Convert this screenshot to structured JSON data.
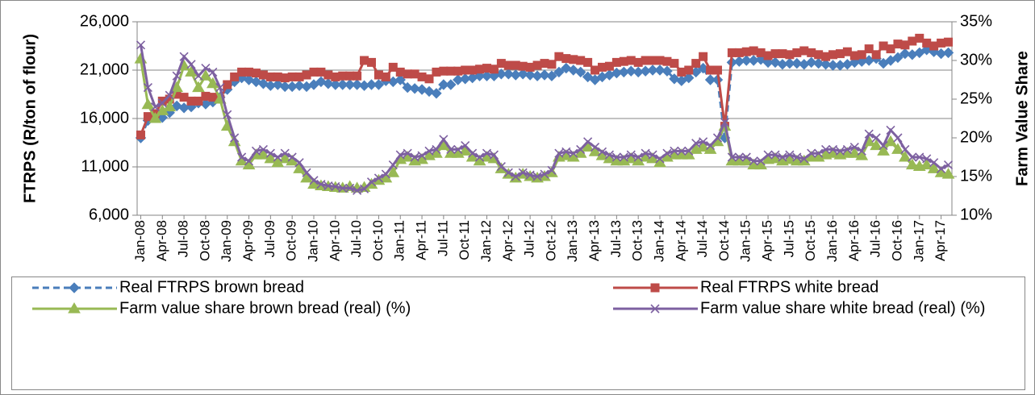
{
  "chart_data": {
    "type": "line",
    "y_label": "FTRPS (R/ton of flour)",
    "y2_label": "Farm Value Share",
    "categories": [
      "Jan-08",
      null,
      null,
      "Apr-08",
      null,
      null,
      "Jul-08",
      null,
      null,
      "Oct-08",
      null,
      null,
      "Jan-09",
      null,
      null,
      "Apr-09",
      null,
      null,
      "Jul-09",
      null,
      null,
      "Oct-09",
      null,
      null,
      "Jan-10",
      null,
      null,
      "Apr-10",
      null,
      null,
      "Jul-10",
      null,
      null,
      "Oct-10",
      null,
      null,
      "Jan-11",
      null,
      null,
      "Apr-11",
      null,
      null,
      "Jul-11",
      null,
      null,
      "Oct-11",
      null,
      null,
      "Jan-12",
      null,
      null,
      "Apr-12",
      null,
      null,
      "Jul-12",
      null,
      null,
      "Oct-12",
      null,
      null,
      "Jan-13",
      null,
      null,
      "Apr-13",
      null,
      null,
      "Jul-13",
      null,
      null,
      "Oct-13",
      null,
      null,
      "Jan-14",
      null,
      null,
      "Apr-14",
      null,
      null,
      "Jul-14",
      null,
      null,
      "Oct-14",
      null,
      null,
      "Jan-15",
      null,
      null,
      "Apr-15",
      null,
      null,
      "Jul-15",
      null,
      null,
      "Oct-15",
      null,
      null,
      "Jan-16",
      null,
      null,
      "Apr-16",
      null,
      null,
      "Jul-16",
      null,
      null,
      "Oct-16",
      null,
      null,
      "Jan-17",
      null,
      null,
      "Apr-17",
      null
    ],
    "ylim": [
      6000,
      26000
    ],
    "yticks": [
      {
        "value": 6000,
        "label": "6,000"
      },
      {
        "value": 11000,
        "label": "11,000"
      },
      {
        "value": 16000,
        "label": "16,000"
      },
      {
        "value": 21000,
        "label": "21,000"
      },
      {
        "value": 26000,
        "label": "26,000"
      }
    ],
    "y2lim": [
      10,
      35
    ],
    "y2ticks": [
      {
        "value": 10,
        "label": "10%"
      },
      {
        "value": 15,
        "label": "15%"
      },
      {
        "value": 20,
        "label": "20%"
      },
      {
        "value": 25,
        "label": "25%"
      },
      {
        "value": 30,
        "label": "30%"
      },
      {
        "value": 35,
        "label": "35%"
      }
    ],
    "grid": true,
    "legend": "bottom",
    "series": [
      {
        "name": "Real FTRPS brown bread",
        "color": "#4a7ebb",
        "marker": "diamond",
        "dash": true,
        "axis": "y",
        "values": [
          14000,
          15800,
          16200,
          16100,
          16600,
          17300,
          17100,
          17200,
          17600,
          17500,
          17700,
          18200,
          19000,
          19800,
          20200,
          20000,
          19800,
          19600,
          19400,
          19500,
          19300,
          19300,
          19400,
          19300,
          19500,
          19800,
          19600,
          19500,
          19500,
          19500,
          19500,
          19400,
          19500,
          19500,
          19900,
          19800,
          20000,
          19200,
          19100,
          19000,
          18800,
          18600,
          19500,
          19500,
          20000,
          20100,
          20200,
          20400,
          20400,
          20400,
          20600,
          20600,
          20500,
          20600,
          20500,
          20400,
          20500,
          20400,
          20800,
          21200,
          21000,
          20800,
          20300,
          20000,
          20300,
          20500,
          20700,
          20800,
          20900,
          20800,
          20900,
          21000,
          21000,
          20900,
          20100,
          19900,
          20200,
          20800,
          21200,
          20000,
          20000,
          14000,
          21800,
          21900,
          22000,
          22000,
          22100,
          21800,
          21800,
          21600,
          21700,
          21700,
          21600,
          21800,
          21700,
          21600,
          21500,
          21500,
          21600,
          21800,
          21900,
          22000,
          22200,
          21700,
          22000,
          22300,
          22700,
          22600,
          22800,
          23100,
          22900,
          22700,
          22800
        ]
      },
      {
        "name": "Real FTRPS white bread",
        "color": "#be4b48",
        "marker": "square",
        "axis": "y",
        "values": [
          14300,
          16200,
          16500,
          17800,
          18000,
          18500,
          18200,
          17800,
          17800,
          18300,
          18200,
          18000,
          19500,
          20300,
          20800,
          20800,
          20700,
          20500,
          20300,
          20300,
          20200,
          20300,
          20300,
          20500,
          20800,
          20800,
          20500,
          20300,
          20400,
          20400,
          20400,
          22000,
          21800,
          20500,
          20300,
          21300,
          20800,
          20600,
          20600,
          20300,
          20100,
          20800,
          20900,
          20900,
          20900,
          21000,
          21000,
          21100,
          21200,
          21100,
          21700,
          21500,
          21500,
          21400,
          21300,
          21500,
          21700,
          21600,
          22400,
          22200,
          22100,
          22000,
          21800,
          21000,
          21300,
          21400,
          21800,
          21900,
          22000,
          21800,
          22000,
          22000,
          22000,
          21900,
          21700,
          20800,
          21000,
          21700,
          22400,
          21000,
          21000,
          15200,
          22800,
          22800,
          22900,
          23000,
          22800,
          22500,
          22700,
          22700,
          22600,
          22800,
          23000,
          22800,
          22600,
          22400,
          22600,
          22700,
          22900,
          22500,
          22600,
          23200,
          22600,
          23500,
          23200,
          23700,
          23600,
          24000,
          24300,
          23800,
          23500,
          23800,
          23900
        ]
      },
      {
        "name": "Farm value share brown bread (real) (%)",
        "color": "#98b954",
        "marker": "triangle",
        "axis": "y2",
        "values": [
          30.2,
          24.3,
          22.5,
          23.5,
          24.0,
          26.5,
          29.3,
          28.5,
          26.5,
          28.0,
          27.0,
          25.0,
          21.5,
          19.5,
          17.0,
          16.5,
          17.8,
          17.8,
          17.3,
          16.8,
          17.3,
          17.0,
          16.0,
          14.8,
          14.0,
          13.8,
          13.7,
          13.6,
          13.5,
          13.7,
          13.5,
          13.6,
          14.0,
          14.5,
          14.8,
          15.5,
          17.2,
          17.5,
          17.0,
          17.2,
          17.7,
          18.0,
          19.0,
          18.0,
          18.0,
          18.3,
          17.5,
          17.0,
          17.5,
          17.3,
          16.0,
          15.3,
          14.8,
          15.3,
          15.0,
          14.8,
          15.0,
          15.5,
          17.5,
          17.7,
          17.5,
          18.0,
          18.8,
          18.2,
          17.7,
          17.3,
          17.0,
          17.0,
          17.3,
          17.0,
          17.5,
          17.3,
          16.8,
          17.5,
          17.8,
          17.8,
          17.8,
          18.5,
          18.8,
          18.5,
          19.5,
          21.5,
          17.0,
          17.0,
          17.0,
          16.5,
          16.5,
          17.2,
          17.3,
          17.0,
          17.2,
          17.0,
          17.0,
          17.5,
          17.5,
          17.8,
          18.0,
          17.8,
          18.0,
          18.0,
          17.7,
          19.5,
          19.0,
          18.3,
          19.5,
          18.5,
          17.5,
          16.5,
          16.3,
          16.5,
          16.0,
          15.5,
          15.3
        ]
      },
      {
        "name": "Farm value share white bread (real) (%)",
        "color": "#7d60a0",
        "marker": "x",
        "axis": "y2",
        "values": [
          32.0,
          26.5,
          24.0,
          24.5,
          25.5,
          28.0,
          30.5,
          29.5,
          28.0,
          29.0,
          28.5,
          26.5,
          23.0,
          20.0,
          17.5,
          17.0,
          18.3,
          18.5,
          18.0,
          17.5,
          18.0,
          17.5,
          16.8,
          15.5,
          14.5,
          14.0,
          13.8,
          13.7,
          13.5,
          13.5,
          13.2,
          13.4,
          14.3,
          14.8,
          15.3,
          16.5,
          17.8,
          18.0,
          17.5,
          17.7,
          18.3,
          18.5,
          19.8,
          18.5,
          18.5,
          19.0,
          18.0,
          17.5,
          18.0,
          17.8,
          16.3,
          15.5,
          15.0,
          15.5,
          15.2,
          15.0,
          15.3,
          15.8,
          18.0,
          18.2,
          18.0,
          18.5,
          19.5,
          18.8,
          18.2,
          17.8,
          17.5,
          17.5,
          17.8,
          17.5,
          18.0,
          17.8,
          17.3,
          18.0,
          18.3,
          18.3,
          18.3,
          19.3,
          19.5,
          19.0,
          20.0,
          22.0,
          17.5,
          17.5,
          17.5,
          17.0,
          17.0,
          17.8,
          17.8,
          17.5,
          17.8,
          17.5,
          17.3,
          18.0,
          18.0,
          18.5,
          18.5,
          18.3,
          18.5,
          18.8,
          18.3,
          20.5,
          20.0,
          19.0,
          21.0,
          20.0,
          18.5,
          17.5,
          17.5,
          17.3,
          16.8,
          16.0,
          16.5
        ]
      }
    ]
  }
}
